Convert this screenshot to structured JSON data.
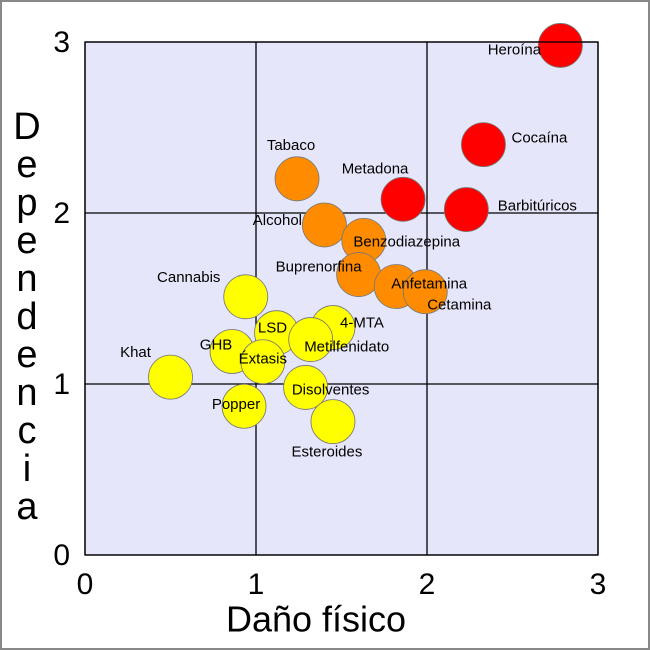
{
  "chart_data": {
    "type": "scatter",
    "xlabel": "Daño físico",
    "ylabel": "Dependencia",
    "xlim": [
      0,
      3
    ],
    "ylim": [
      0,
      3
    ],
    "xticks": [
      0,
      1,
      2,
      3
    ],
    "yticks": [
      0,
      1,
      2,
      3
    ],
    "grid": true,
    "points": [
      {
        "label": "Heroína",
        "x": 2.78,
        "y": 2.98,
        "color": "#ff0000"
      },
      {
        "label": "Cocaína",
        "x": 2.33,
        "y": 2.4,
        "color": "#ff0000"
      },
      {
        "label": "Barbitúricos",
        "x": 2.23,
        "y": 2.02,
        "color": "#ff0000"
      },
      {
        "label": "Metadona",
        "x": 1.86,
        "y": 2.08,
        "color": "#ff0000"
      },
      {
        "label": "Tabaco",
        "x": 1.24,
        "y": 2.2,
        "color": "#ff8c00"
      },
      {
        "label": "Alcohol",
        "x": 1.4,
        "y": 1.93,
        "color": "#ff8c00"
      },
      {
        "label": "Benzodiazepina",
        "x": 1.63,
        "y": 1.84,
        "color": "#ff8c00"
      },
      {
        "label": "Buprenorfina",
        "x": 1.6,
        "y": 1.64,
        "color": "#ff8c00"
      },
      {
        "label": "Anfetamina",
        "x": 1.82,
        "y": 1.57,
        "color": "#ff8c00"
      },
      {
        "label": "Cetamina",
        "x": 1.99,
        "y": 1.54,
        "color": "#ff8c00"
      },
      {
        "label": "Cannabis",
        "x": 0.94,
        "y": 1.51,
        "color": "#ffff00"
      },
      {
        "label": "LSD",
        "x": 1.12,
        "y": 1.3,
        "color": "#ffff00"
      },
      {
        "label": "4-MTA",
        "x": 1.45,
        "y": 1.33,
        "color": "#ffff00"
      },
      {
        "label": "Metilfenidato",
        "x": 1.32,
        "y": 1.26,
        "color": "#ffff00"
      },
      {
        "label": "GHB",
        "x": 0.86,
        "y": 1.19,
        "color": "#ffff00"
      },
      {
        "label": "Éxtasis",
        "x": 1.04,
        "y": 1.13,
        "color": "#ffff00"
      },
      {
        "label": "Khat",
        "x": 0.5,
        "y": 1.04,
        "color": "#ffff00"
      },
      {
        "label": "Disolventes",
        "x": 1.29,
        "y": 0.98,
        "color": "#ffff00"
      },
      {
        "label": "Popper",
        "x": 0.93,
        "y": 0.87,
        "color": "#ffff00"
      },
      {
        "label": "Esteroides",
        "x": 1.45,
        "y": 0.78,
        "color": "#ffff00"
      }
    ]
  }
}
